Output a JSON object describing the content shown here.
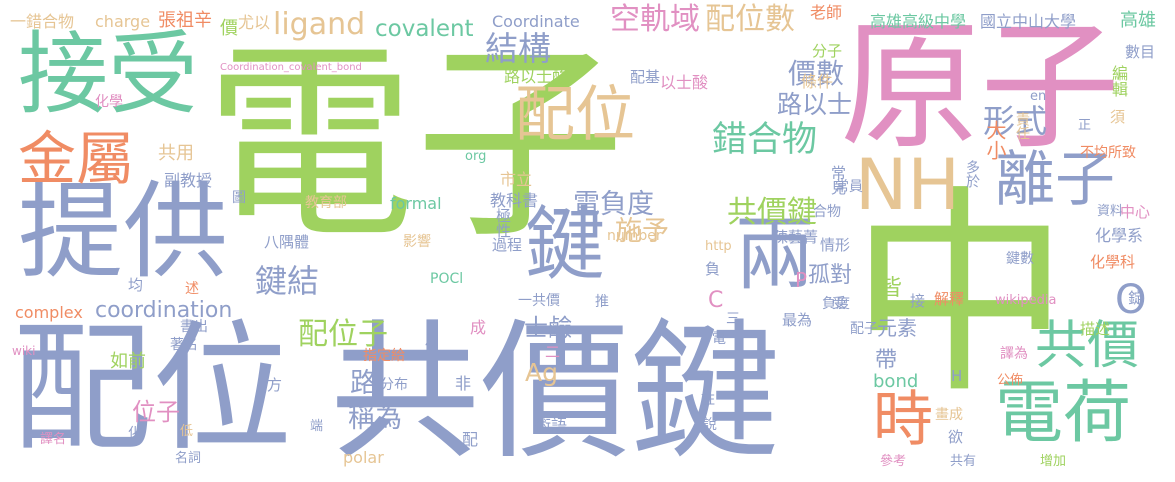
{
  "words": [
    {
      "t": "電子",
      "c": "#9fd25f"
    },
    {
      "t": "中",
      "c": "#9fd25f"
    },
    {
      "t": "配位",
      "c": "#8f9ec9"
    },
    {
      "t": "共價鍵",
      "c": "#8f9ec9"
    },
    {
      "t": "原子",
      "c": "#e190c2"
    },
    {
      "t": "接受",
      "c": "#6cc8a2"
    },
    {
      "t": "提供",
      "c": "#8f9ec9"
    },
    {
      "t": "兩",
      "c": "#8f9ec9"
    },
    {
      "t": "鍵",
      "c": "#8f9ec9"
    },
    {
      "t": "金屬",
      "c": "#f08c64"
    },
    {
      "t": "配位",
      "c": "#e6c594"
    },
    {
      "t": "NH",
      "c": "#e6c594"
    },
    {
      "t": "離子",
      "c": "#8f9ec9"
    },
    {
      "t": "電荷",
      "c": "#6cc8a2"
    },
    {
      "t": "時",
      "c": "#f08c64"
    },
    {
      "t": "共價",
      "c": "#6cc8a2"
    },
    {
      "t": "O",
      "c": "#8f9ec9"
    },
    {
      "t": "ligand",
      "c": "#e6c594"
    },
    {
      "t": "covalent",
      "c": "#6cc8a2"
    },
    {
      "t": "結構",
      "c": "#8f9ec9"
    },
    {
      "t": "空軌域",
      "c": "#e190c2"
    },
    {
      "t": "配位數",
      "c": "#e6c594"
    },
    {
      "t": "價數",
      "c": "#8f9ec9"
    },
    {
      "t": "錯合物",
      "c": "#6cc8a2"
    },
    {
      "t": "路以士",
      "c": "#8f9ec9"
    },
    {
      "t": "形式",
      "c": "#8f9ec9"
    },
    {
      "t": "大小",
      "c": "#f08c64"
    },
    {
      "t": "共價鍵",
      "c": "#9fd25f"
    },
    {
      "t": "電負度",
      "c": "#8f9ec9"
    },
    {
      "t": "施予",
      "c": "#e6c594"
    },
    {
      "t": "鍵結",
      "c": "#8f9ec9"
    },
    {
      "t": "coordination",
      "c": "#8f9ec9"
    },
    {
      "t": "配位子",
      "c": "#9fd25f"
    },
    {
      "t": "帶",
      "c": "#8f9ec9"
    },
    {
      "t": "皆",
      "c": "#9fd25f"
    },
    {
      "t": "孤對",
      "c": "#8f9ec9"
    },
    {
      "t": "P",
      "c": "#e190c2"
    },
    {
      "t": "C",
      "c": "#e190c2"
    },
    {
      "t": "路",
      "c": "#8f9ec9"
    },
    {
      "t": "稱為",
      "c": "#8f9ec9"
    },
    {
      "t": "元素",
      "c": "#8f9ec9"
    },
    {
      "t": "bond",
      "c": "#6cc8a2"
    },
    {
      "t": "Ag",
      "c": "#e6c594"
    },
    {
      "t": "位子",
      "c": "#e190c2"
    },
    {
      "t": "士鹼",
      "c": "#8f9ec9"
    },
    {
      "t": "complex",
      "c": "#f08c64"
    },
    {
      "t": "高雄高級中學",
      "c": "#6cc8a2"
    },
    {
      "t": "國立中山大學",
      "c": "#8f9ec9"
    },
    {
      "t": "高雄",
      "c": "#6cc8a2"
    },
    {
      "t": "Coordinate",
      "c": "#8f9ec9"
    },
    {
      "t": "尤以",
      "c": "#e6c594"
    },
    {
      "t": "張祖辛",
      "c": "#f08c64"
    },
    {
      "t": "charge",
      "c": "#e6c594"
    },
    {
      "t": "一錯合物",
      "c": "#e6c594"
    },
    {
      "t": "老師",
      "c": "#f08c64"
    },
    {
      "t": "分子",
      "c": "#9fd25f"
    },
    {
      "t": "數目",
      "c": "#8f9ec9"
    },
    {
      "t": "Coordination_covalent_bond",
      "c": "#e190c2"
    },
    {
      "t": "價",
      "c": "#9fd25f"
    },
    {
      "t": "路以士酸",
      "c": "#9fd25f"
    },
    {
      "t": "配基",
      "c": "#8f9ec9"
    },
    {
      "t": "以士酸",
      "c": "#e190c2"
    },
    {
      "t": "條件",
      "c": "#e6c594"
    },
    {
      "t": "編輯",
      "c": "#9fd25f"
    },
    {
      "t": "化學",
      "c": "#e190c2"
    },
    {
      "t": "en",
      "c": "#8f9ec9"
    },
    {
      "t": "須",
      "c": "#e6c594"
    },
    {
      "t": "責任",
      "c": "#e6c594"
    },
    {
      "t": "正",
      "c": "#8f9ec9"
    },
    {
      "t": "共用",
      "c": "#e6c594"
    },
    {
      "t": "org",
      "c": "#6cc8a2"
    },
    {
      "t": "不均所致",
      "c": "#f08c64"
    },
    {
      "t": "多於",
      "c": "#8f9ec9"
    },
    {
      "t": "副教授",
      "c": "#8f9ec9"
    },
    {
      "t": "市立",
      "c": "#e6c594"
    },
    {
      "t": "常見",
      "c": "#8f9ec9"
    },
    {
      "t": "教育部",
      "c": "#e6c594"
    },
    {
      "t": "formal",
      "c": "#6cc8a2"
    },
    {
      "t": "教科書",
      "c": "#8f9ec9"
    },
    {
      "t": "合物",
      "c": "#8f9ec9"
    },
    {
      "t": "資料",
      "c": "#8f9ec9"
    },
    {
      "t": "中心",
      "c": "#e190c2"
    },
    {
      "t": "八隅體",
      "c": "#8f9ec9"
    },
    {
      "t": "影響",
      "c": "#e6c594"
    },
    {
      "t": "極性",
      "c": "#8f9ec9"
    },
    {
      "t": "過程",
      "c": "#8f9ec9"
    },
    {
      "t": "number",
      "c": "#e6c594"
    },
    {
      "t": "陳藝菁",
      "c": "#8f9ec9"
    },
    {
      "t": "情形",
      "c": "#8f9ec9"
    },
    {
      "t": "化學系",
      "c": "#8f9ec9"
    },
    {
      "t": "http",
      "c": "#e6c594"
    },
    {
      "t": "化學科",
      "c": "#f08c64"
    },
    {
      "t": "鍵數",
      "c": "#8f9ec9"
    },
    {
      "t": "POCl",
      "c": "#6cc8a2"
    },
    {
      "t": "均",
      "c": "#8f9ec9"
    },
    {
      "t": "述",
      "c": "#f08c64"
    },
    {
      "t": "圖",
      "c": "#8f9ec9"
    },
    {
      "t": "一共價",
      "c": "#8f9ec9"
    },
    {
      "t": "推",
      "c": "#8f9ec9"
    },
    {
      "t": "負",
      "c": "#8f9ec9"
    },
    {
      "t": "接",
      "c": "#8f9ec9"
    },
    {
      "t": "解釋",
      "c": "#f08c64"
    },
    {
      "t": "wikipedia",
      "c": "#e190c2"
    },
    {
      "t": "錠",
      "c": "#8f9ec9"
    },
    {
      "t": "描述",
      "c": "#9fd25f"
    },
    {
      "t": "成",
      "c": "#e190c2"
    },
    {
      "t": "三",
      "c": "#8f9ec9"
    },
    {
      "t": "最為",
      "c": "#8f9ec9"
    },
    {
      "t": "負度",
      "c": "#8f9ec9"
    },
    {
      "t": "受",
      "c": "#8f9ec9"
    },
    {
      "t": "配子",
      "c": "#8f9ec9"
    },
    {
      "t": "書出",
      "c": "#8f9ec9"
    },
    {
      "t": "著名",
      "c": "#8f9ec9"
    },
    {
      "t": "電",
      "c": "#8f9ec9"
    },
    {
      "t": "wiki",
      "c": "#e190c2"
    },
    {
      "t": "如前",
      "c": "#9fd25f"
    },
    {
      "t": "指定給",
      "c": "#f08c64"
    },
    {
      "t": "例",
      "c": "#8f9ec9"
    },
    {
      "t": "二",
      "c": "#e190c2"
    },
    {
      "t": "譯為",
      "c": "#e190c2"
    },
    {
      "t": "H",
      "c": "#8f9ec9"
    },
    {
      "t": "分布",
      "c": "#8f9ec9"
    },
    {
      "t": "非",
      "c": "#8f9ec9"
    },
    {
      "t": "方",
      "c": "#8f9ec9"
    },
    {
      "t": "公佈",
      "c": "#f08c64"
    },
    {
      "t": "註",
      "c": "#8f9ec9"
    },
    {
      "t": "說",
      "c": "#8f9ec9"
    },
    {
      "t": "術語",
      "c": "#8f9ec9"
    },
    {
      "t": "端",
      "c": "#8f9ec9"
    },
    {
      "t": "配",
      "c": "#8f9ec9"
    },
    {
      "t": "欲",
      "c": "#8f9ec9"
    },
    {
      "t": "畫成",
      "c": "#e6c594"
    },
    {
      "t": "譯名",
      "c": "#e190c2"
    },
    {
      "t": "化",
      "c": "#8f9ec9"
    },
    {
      "t": "低",
      "c": "#e6c594"
    },
    {
      "t": "名詞",
      "c": "#8f9ec9"
    },
    {
      "t": "polar",
      "c": "#e6c594"
    },
    {
      "t": "參考",
      "c": "#e190c2"
    },
    {
      "t": "共有",
      "c": "#8f9ec9"
    },
    {
      "t": "增加",
      "c": "#9fd25f"
    },
    {
      "t": "常員",
      "c": "#8f9ec9"
    }
  ]
}
